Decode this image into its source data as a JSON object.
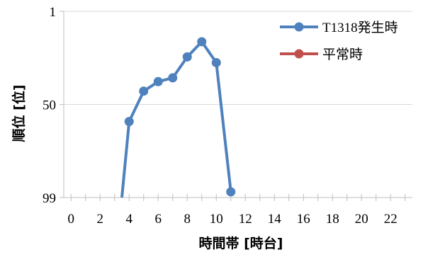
{
  "chart_data": {
    "type": "line",
    "title": "",
    "xlabel": "時間帯 [時台]",
    "ylabel": "順位 [位]",
    "x_ticks": [
      0,
      2,
      4,
      6,
      8,
      10,
      12,
      14,
      16,
      18,
      20,
      22
    ],
    "xlim": [
      -0.5,
      23.5
    ],
    "y_ticks": [
      1,
      50,
      99
    ],
    "ylim": [
      1,
      99
    ],
    "y_inverted": true,
    "grid": "horizontal",
    "legend_position": "top-right",
    "series": [
      {
        "name": "T1318発生時",
        "color": "#4f81bd",
        "points": [
          {
            "x": 3.5,
            "y": 99,
            "marker": false
          },
          {
            "x": 4,
            "y": 59
          },
          {
            "x": 5,
            "y": 43
          },
          {
            "x": 6,
            "y": 38
          },
          {
            "x": 7,
            "y": 36
          },
          {
            "x": 8,
            "y": 25
          },
          {
            "x": 9,
            "y": 17
          },
          {
            "x": 10,
            "y": 28
          },
          {
            "x": 11,
            "y": 96
          }
        ]
      },
      {
        "name": "平常時",
        "color": "#c0504d",
        "points": []
      }
    ]
  }
}
